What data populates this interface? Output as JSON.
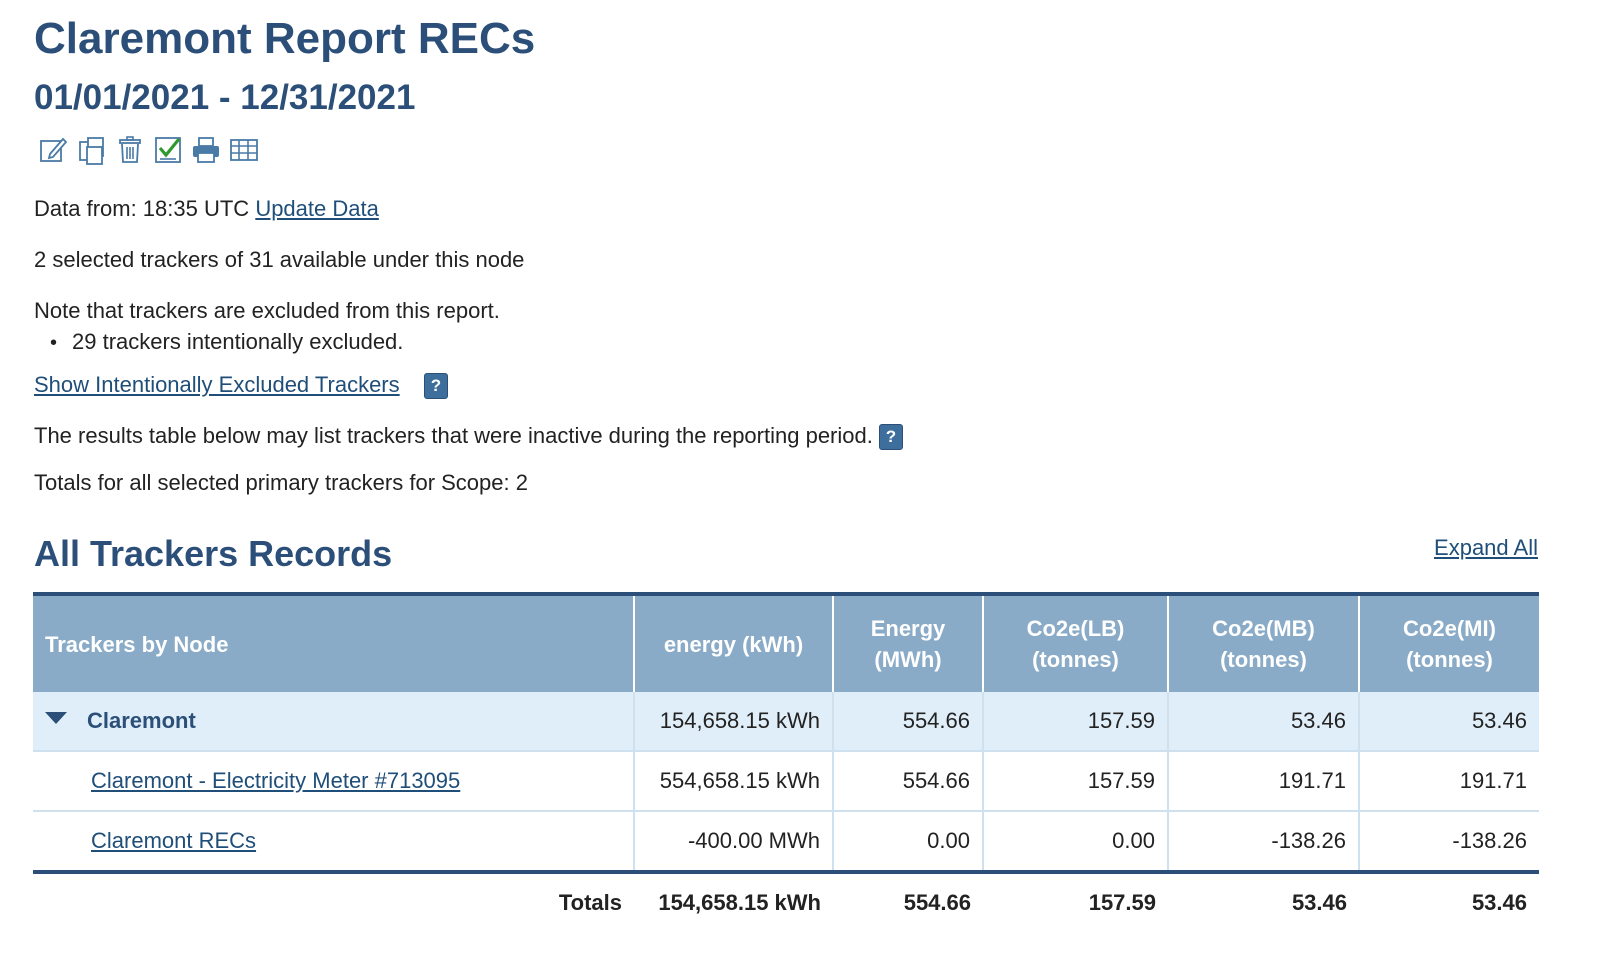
{
  "report": {
    "title": "Claremont Report RECs",
    "date_range": "01/01/2021 - 12/31/2021"
  },
  "toolbar": {
    "icons": [
      "edit-icon",
      "copy-icon",
      "trash-icon",
      "checklist-icon",
      "print-icon",
      "table-icon"
    ]
  },
  "info": {
    "data_from_label": "Data from: 18:35 UTC",
    "update_link": "Update Data",
    "selected_trackers": "2 selected trackers of 31 available under this node",
    "excluded_note": "Note that trackers are excluded from this report.",
    "excluded_bullets": [
      "29 trackers intentionally excluded."
    ],
    "show_excluded_link": "Show Intentionally Excluded Trackers",
    "inactive_note": "The results table below may list trackers that were inactive during the reporting period.",
    "totals_scope": "Totals for all selected primary trackers for Scope: 2",
    "help_glyph": "?"
  },
  "section": {
    "title": "All Trackers Records",
    "expand_all": "Expand All"
  },
  "table": {
    "headers": {
      "trackers": "Trackers by Node",
      "energy_kwh": "energy (kWh)",
      "energy_mwh": "Energy (MWh)",
      "co2e_lb": "Co2e(LB) (tonnes)",
      "co2e_mb": "Co2e(MB) (tonnes)",
      "co2e_mi": "Co2e(MI) (tonnes)"
    },
    "node": {
      "name": "Claremont",
      "energy_kwh": "154,658.15 kWh",
      "energy_mwh": "554.66",
      "co2e_lb": "157.59",
      "co2e_mb": "53.46",
      "co2e_mi": "53.46"
    },
    "trackers": [
      {
        "name": "Claremont - Electricity Meter #713095",
        "energy_kwh": "554,658.15 kWh",
        "energy_mwh": "554.66",
        "co2e_lb": "157.59",
        "co2e_mb": "191.71",
        "co2e_mi": "191.71"
      },
      {
        "name": "Claremont RECs",
        "energy_kwh": "-400.00 MWh",
        "energy_mwh": "0.00",
        "co2e_lb": "0.00",
        "co2e_mb": "-138.26",
        "co2e_mi": "-138.26"
      }
    ],
    "totals": {
      "label": "Totals",
      "energy_kwh": "154,658.15 kWh",
      "energy_mwh": "554.66",
      "co2e_lb": "157.59",
      "co2e_mb": "53.46",
      "co2e_mi": "53.46"
    }
  },
  "colors": {
    "heading": "#2b4f78",
    "header_bg": "#8aabc7",
    "node_row_bg": "#e0eef9",
    "link": "#1f4e79"
  }
}
